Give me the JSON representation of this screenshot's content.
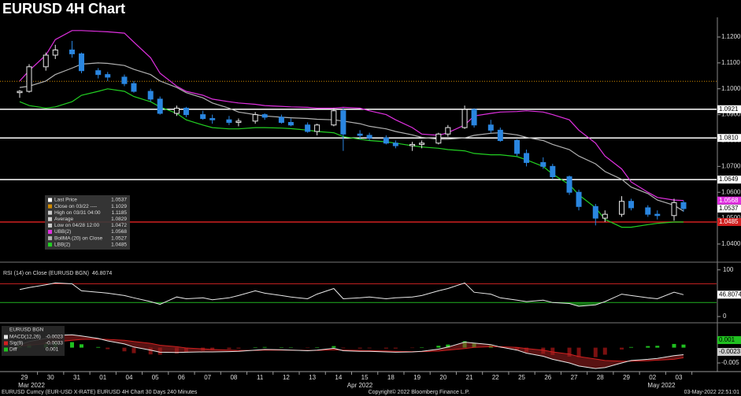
{
  "chart_data": [
    {
      "type": "candlestick",
      "title": "EURUSD 4H Chart",
      "categories": [
        "29",
        null,
        "30",
        null,
        "31",
        null,
        "01",
        null,
        "04",
        null,
        "05",
        null,
        "06",
        null,
        "07",
        null,
        "08",
        null,
        "11",
        null,
        "12",
        null,
        "13",
        null,
        "14",
        null,
        "15",
        null,
        "18",
        null,
        "19",
        null,
        "20",
        null,
        "21",
        null,
        "22",
        null,
        "25",
        null,
        "26",
        null,
        "27",
        null,
        "28",
        null,
        "29",
        null,
        "02",
        null,
        "03",
        null
      ],
      "month_labels": [
        "Mar 2022",
        "Apr 2022",
        "May 2022"
      ],
      "open": [
        1.0985,
        1.099,
        1.1085,
        1.113,
        1.115,
        1.1135,
        1.107,
        1.1055,
        1.1045,
        1.102,
        1.099,
        1.096,
        1.0905,
        1.0925,
        1.09,
        1.0885,
        1.088,
        1.087,
        1.0875,
        1.09,
        1.089,
        1.087,
        1.086,
        1.0835,
        1.086,
        1.0915,
        1.0825,
        1.082,
        1.081,
        1.079,
        1.078,
        1.0785,
        1.079,
        1.0825,
        1.085,
        1.092,
        1.086,
        1.084,
        1.08,
        1.075,
        1.0715,
        1.07,
        1.066,
        1.06,
        1.0545,
        1.05,
        1.0515,
        1.0565,
        1.054,
        1.0515,
        1.051,
        1.056
      ],
      "high": [
        1.0995,
        1.1095,
        1.114,
        1.117,
        1.1185,
        1.114,
        1.108,
        1.1065,
        1.1055,
        1.103,
        1.1,
        1.097,
        1.0935,
        1.093,
        1.0915,
        1.09,
        1.0895,
        1.0885,
        1.091,
        1.0905,
        1.09,
        1.0885,
        1.087,
        1.0865,
        1.0925,
        1.0925,
        1.084,
        1.083,
        1.082,
        1.08,
        1.0795,
        1.08,
        1.083,
        1.086,
        1.0935,
        1.0925,
        1.088,
        1.085,
        1.0805,
        1.0765,
        1.0735,
        1.071,
        1.0665,
        1.061,
        1.0555,
        1.053,
        1.0585,
        1.0575,
        1.055,
        1.053,
        1.0575,
        1.0568
      ],
      "low": [
        1.0965,
        1.0985,
        1.107,
        1.1115,
        1.112,
        1.106,
        1.104,
        1.103,
        1.101,
        1.0985,
        1.095,
        1.09,
        1.0895,
        1.089,
        1.088,
        1.0865,
        1.086,
        1.0855,
        1.0865,
        1.088,
        1.0865,
        1.0855,
        1.083,
        1.082,
        1.0855,
        1.076,
        1.0805,
        1.08,
        1.0785,
        1.077,
        1.076,
        1.077,
        1.0785,
        1.0815,
        1.0845,
        1.085,
        1.083,
        1.0795,
        1.074,
        1.07,
        1.069,
        1.065,
        1.059,
        1.053,
        1.0472,
        1.0485,
        1.0505,
        1.053,
        1.0505,
        1.0495,
        1.049,
        1.0525
      ],
      "close": [
        1.099,
        1.1085,
        1.113,
        1.115,
        1.1135,
        1.107,
        1.1055,
        1.1045,
        1.102,
        1.099,
        1.096,
        1.0905,
        1.0925,
        1.09,
        1.0885,
        1.088,
        1.087,
        1.0875,
        1.09,
        1.089,
        1.087,
        1.086,
        1.0835,
        1.086,
        1.0915,
        1.0825,
        1.082,
        1.081,
        1.079,
        1.078,
        1.0785,
        1.079,
        1.0825,
        1.085,
        1.092,
        1.086,
        1.084,
        1.08,
        1.075,
        1.0715,
        1.07,
        1.066,
        1.06,
        1.0545,
        1.05,
        1.0515,
        1.0565,
        1.054,
        1.0515,
        1.051,
        1.056,
        1.0537
      ],
      "up_color": "#e8e8e8",
      "down_color": "#2a86e0",
      "series": [
        {
          "name": "UBB(2)",
          "color": "#e030e0",
          "values": [
            1.103,
            1.107,
            1.113,
            1.119,
            1.1225,
            1.1225,
            1.1222,
            1.122,
            1.1215,
            1.118,
            1.112,
            1.106,
            1.101,
            1.099,
            1.0975,
            1.096,
            1.095,
            1.0945,
            1.094,
            1.0935,
            1.0932,
            1.093,
            1.0928,
            1.0925,
            1.0925,
            1.0928,
            1.0925,
            1.0915,
            1.09,
            1.088,
            1.085,
            1.0825,
            1.082,
            1.083,
            1.086,
            1.0895,
            1.0905,
            1.091,
            1.0912,
            1.0915,
            1.091,
            1.09,
            1.088,
            1.084,
            1.079,
            1.074,
            1.069,
            1.064,
            1.06,
            1.058,
            1.057,
            1.0568
          ]
        },
        {
          "name": "BollMA (20)  on Close",
          "color": "#b0b0b0",
          "values": [
            1.1005,
            1.101,
            1.103,
            1.1055,
            1.108,
            1.1095,
            1.11,
            1.1098,
            1.109,
            1.1075,
            1.1055,
            1.103,
            1.1005,
            1.0985,
            1.0965,
            1.0945,
            1.0925,
            1.091,
            1.09,
            1.0895,
            1.089,
            1.0888,
            1.0885,
            1.0882,
            1.088,
            1.0875,
            1.0865,
            1.0855,
            1.0845,
            1.0835,
            1.0822,
            1.0812,
            1.0805,
            1.0805,
            1.081,
            1.082,
            1.0828,
            1.083,
            1.0822,
            1.0812,
            1.08,
            1.0785,
            1.0765,
            1.074,
            1.071,
            1.068,
            1.065,
            1.062,
            1.0595,
            1.057,
            1.055,
            1.0527
          ]
        },
        {
          "name": "LBB(2)",
          "color": "#22d022",
          "values": [
            1.095,
            1.0935,
            1.0925,
            1.093,
            1.095,
            1.0975,
            1.099,
            1.1,
            1.099,
            1.097,
            1.095,
            1.093,
            1.0905,
            1.088,
            1.086,
            1.085,
            1.0845,
            1.0845,
            1.085,
            1.085,
            1.0848,
            1.0846,
            1.084,
            1.0835,
            1.083,
            1.0815,
            1.0805,
            1.08,
            1.0795,
            1.079,
            1.078,
            1.0775,
            1.077,
            1.0765,
            1.076,
            1.075,
            1.0745,
            1.0745,
            1.0738,
            1.0725,
            1.07,
            1.067,
            1.063,
            1.059,
            1.054,
            1.0495,
            1.0465,
            1.0465,
            1.0475,
            1.048,
            1.0485,
            1.0485
          ]
        }
      ],
      "legend_extra": [
        {
          "label": "Last Price",
          "value": 1.0537,
          "color": "#ffffff"
        },
        {
          "label": "Close on 03/22 ----",
          "value": 1.1029,
          "color": "#d08a00"
        },
        {
          "label": "High on 03/31 04:00",
          "value": 1.1185,
          "color": "#cccccc"
        },
        {
          "label": "Average",
          "value": 1.0829,
          "color": "#cccccc"
        },
        {
          "label": "Low on 04/28 12:00",
          "value": 1.0472,
          "color": "#cccccc"
        }
      ],
      "hlines": [
        {
          "value": 1.1029,
          "color": "#d08a00",
          "style": "dotted"
        },
        {
          "value": 1.0921,
          "label": "1.0921",
          "color": "#ffffff",
          "style": "solid"
        },
        {
          "value": 1.081,
          "label": "1.0810",
          "color": "#ffffff",
          "style": "solid"
        },
        {
          "value": 1.0649,
          "label": "1.0649",
          "color": "#ffffff",
          "style": "solid"
        },
        {
          "value": 1.0485,
          "label": "1.0485",
          "color": "#d02020",
          "style": "solid"
        }
      ],
      "ylim": [
        1.0339,
        1.1267
      ],
      "yticks": [
        {
          "value": 1.04,
          "label": "1.0400"
        },
        {
          "value": 1.05,
          "label": "1.0500"
        },
        {
          "value": 1.06,
          "label": "1.0600"
        },
        {
          "value": 1.07,
          "label": "1.0700"
        },
        {
          "value": 1.08,
          "label": "1.0800"
        },
        {
          "value": 1.09,
          "label": "1.0900"
        },
        {
          "value": 1.1,
          "label": "1.1000"
        },
        {
          "value": 1.11,
          "label": "1.1100"
        },
        {
          "value": 1.12,
          "label": "1.1200"
        }
      ]
    },
    {
      "type": "line",
      "series": [
        {
          "name": "RSI (14)  on Close (EURUSD BGN)",
          "color": "#e8e8e8",
          "values": [
            58,
            62,
            68,
            72,
            70,
            55,
            52,
            50,
            45,
            40,
            32,
            26,
            42,
            38,
            40,
            36,
            40,
            45,
            55,
            50,
            45,
            42,
            38,
            48,
            60,
            38,
            40,
            42,
            38,
            40,
            42,
            45,
            55,
            60,
            72,
            52,
            48,
            40,
            35,
            32,
            35,
            30,
            28,
            22,
            25,
            32,
            48,
            45,
            40,
            38,
            52,
            46.8074
          ]
        }
      ],
      "levels": [
        {
          "value": 70,
          "color": "#c02020"
        },
        {
          "value": 30,
          "color": "#20b020"
        }
      ],
      "ylim": [
        -10,
        108
      ],
      "yticks": [
        0,
        100
      ]
    },
    {
      "type": "macd",
      "title": "EURUSD BGN",
      "series": [
        {
          "name": "MACD(12,26)",
          "color": "#e8e8e8",
          "values": [
            0.001,
            0.002,
            0.003,
            0.004,
            0.0042,
            0.0038,
            0.003,
            0.0022,
            0.0012,
            0.0002,
            -0.0008,
            -0.0015,
            -0.0016,
            -0.0015,
            -0.0014,
            -0.0014,
            -0.0013,
            -0.0012,
            -0.0008,
            -0.0006,
            -0.0007,
            -0.0008,
            -0.001,
            -0.0008,
            -0.0002,
            -0.001,
            -0.0012,
            -0.0012,
            -0.0014,
            -0.0015,
            -0.0014,
            -0.0012,
            -0.0005,
            0.0002,
            0.0018,
            0.0015,
            0.001,
            0.0002,
            -0.0008,
            -0.0018,
            -0.0028,
            -0.0038,
            -0.005,
            -0.006,
            -0.0068,
            -0.0065,
            -0.005,
            -0.0042,
            -0.0038,
            -0.0035,
            -0.0026,
            -0.0023
          ]
        },
        {
          "name": "Sig(9)",
          "color": "#d02020",
          "values": [
            0.0005,
            0.0008,
            0.0013,
            0.0019,
            0.0024,
            0.0027,
            0.0028,
            0.0027,
            0.0024,
            0.002,
            0.0014,
            0.0008,
            0.0003,
            -0.0001,
            -0.0004,
            -0.0006,
            -0.0008,
            -0.0009,
            -0.0009,
            -0.0008,
            -0.0008,
            -0.0008,
            -0.0009,
            -0.0009,
            -0.0007,
            -0.0008,
            -0.0009,
            -0.001,
            -0.0011,
            -0.0012,
            -0.0013,
            -0.0013,
            -0.0011,
            -0.0008,
            -0.0003,
            0.0001,
            0.0003,
            0.0003,
            0.0001,
            -0.0003,
            -0.0008,
            -0.0014,
            -0.0021,
            -0.0029,
            -0.0037,
            -0.0042,
            -0.0044,
            -0.0044,
            -0.0043,
            -0.0041,
            -0.0038,
            -0.0033
          ]
        },
        {
          "name": "Diff",
          "color": "#20c020",
          "values": [
            0.0005,
            0.0012,
            0.0017,
            0.0021,
            0.0018,
            0.0011,
            0.0002,
            -0.0005,
            -0.0012,
            -0.0018,
            -0.0022,
            -0.0023,
            -0.0019,
            -0.0014,
            -0.001,
            -0.0008,
            -0.0005,
            -0.0003,
            0.0001,
            0.0002,
            0.0001,
            0.0,
            -0.0001,
            0.0001,
            0.0005,
            -0.0002,
            -0.0003,
            -0.0002,
            -0.0003,
            -0.0003,
            -0.0001,
            0.0001,
            0.0006,
            0.001,
            0.0021,
            0.0014,
            0.0007,
            -0.0001,
            -0.0009,
            -0.0015,
            -0.002,
            -0.0024,
            -0.0029,
            -0.0031,
            -0.0031,
            -0.0023,
            -0.0006,
            0.0002,
            0.0005,
            0.0006,
            0.0012,
            0.001
          ]
        }
      ],
      "ylim": [
        -0.0073,
        0.0076
      ],
      "yticks": [
        -0.005
      ]
    }
  ],
  "footer": {
    "left": "EURUSD Curncy (EUR-USD X-RATE) EURUSD 4H Chart 30 Days 240 Minutes",
    "center": "Copyright© 2022 Bloomberg Finance L.P.",
    "right": "03-May-2022 22:51:01"
  }
}
